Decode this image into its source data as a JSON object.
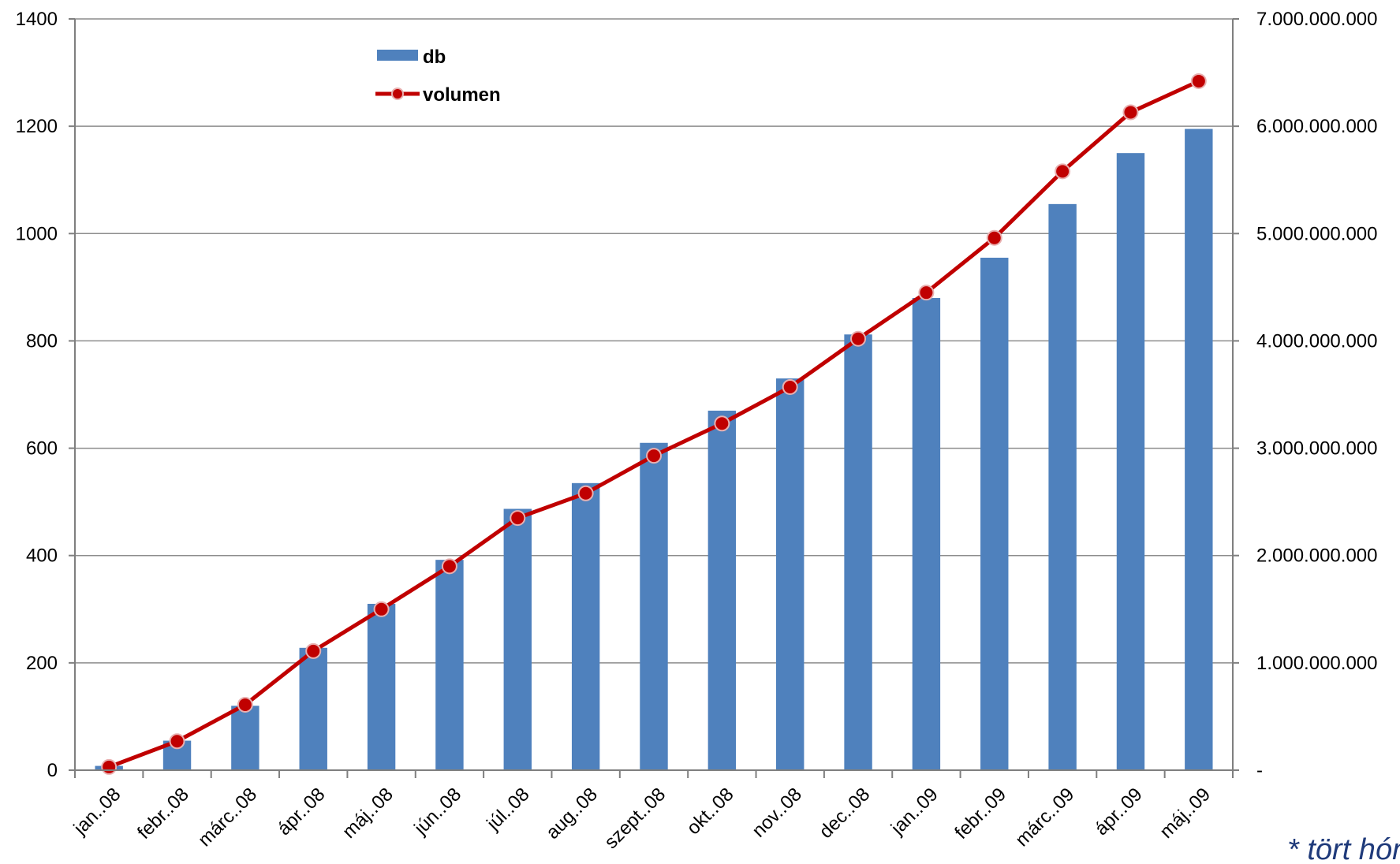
{
  "chart_data": {
    "type": "bar",
    "categories": [
      "jan..08",
      "febr..08",
      "márc..08",
      "ápr..08",
      "máj..08",
      "jún..08",
      "júl..08",
      "aug..08",
      "szept..08",
      "okt..08",
      "nov..08",
      "dec..08",
      "jan..09",
      "febr..09",
      "márc..09",
      "ápr..09",
      "máj..09"
    ],
    "series": [
      {
        "name": "db",
        "type": "bar",
        "axis": "left",
        "color": "#4f81bd",
        "values": [
          8,
          55,
          120,
          228,
          310,
          392,
          487,
          535,
          610,
          670,
          730,
          812,
          880,
          955,
          1055,
          1150,
          1195
        ]
      },
      {
        "name": "volumen",
        "type": "line",
        "axis": "right",
        "color": "#c00000",
        "values": [
          30000000,
          270000000,
          610000000,
          1110000000,
          1500000000,
          1900000000,
          2350000000,
          2580000000,
          2930000000,
          3230000000,
          3570000000,
          4020000000,
          4450000000,
          4960000000,
          5580000000,
          6130000000,
          6420000000
        ]
      }
    ],
    "y_left": {
      "min": 0,
      "max": 1400,
      "ticks": [
        "0",
        "200",
        "400",
        "600",
        "800",
        "1000",
        "1200",
        "1400"
      ]
    },
    "y_right": {
      "min": 0,
      "max": 7000000000,
      "ticks": [
        "-",
        "1.000.000.000",
        "2.000.000.000",
        "3.000.000.000",
        "4.000.000.000",
        "5.000.000.000",
        "6.000.000.000",
        "7.000.000.000"
      ]
    },
    "grid": true,
    "legend": {
      "position": "top-left-inside",
      "items": [
        "db",
        "volumen"
      ]
    },
    "footnote": "* tört hóna"
  }
}
